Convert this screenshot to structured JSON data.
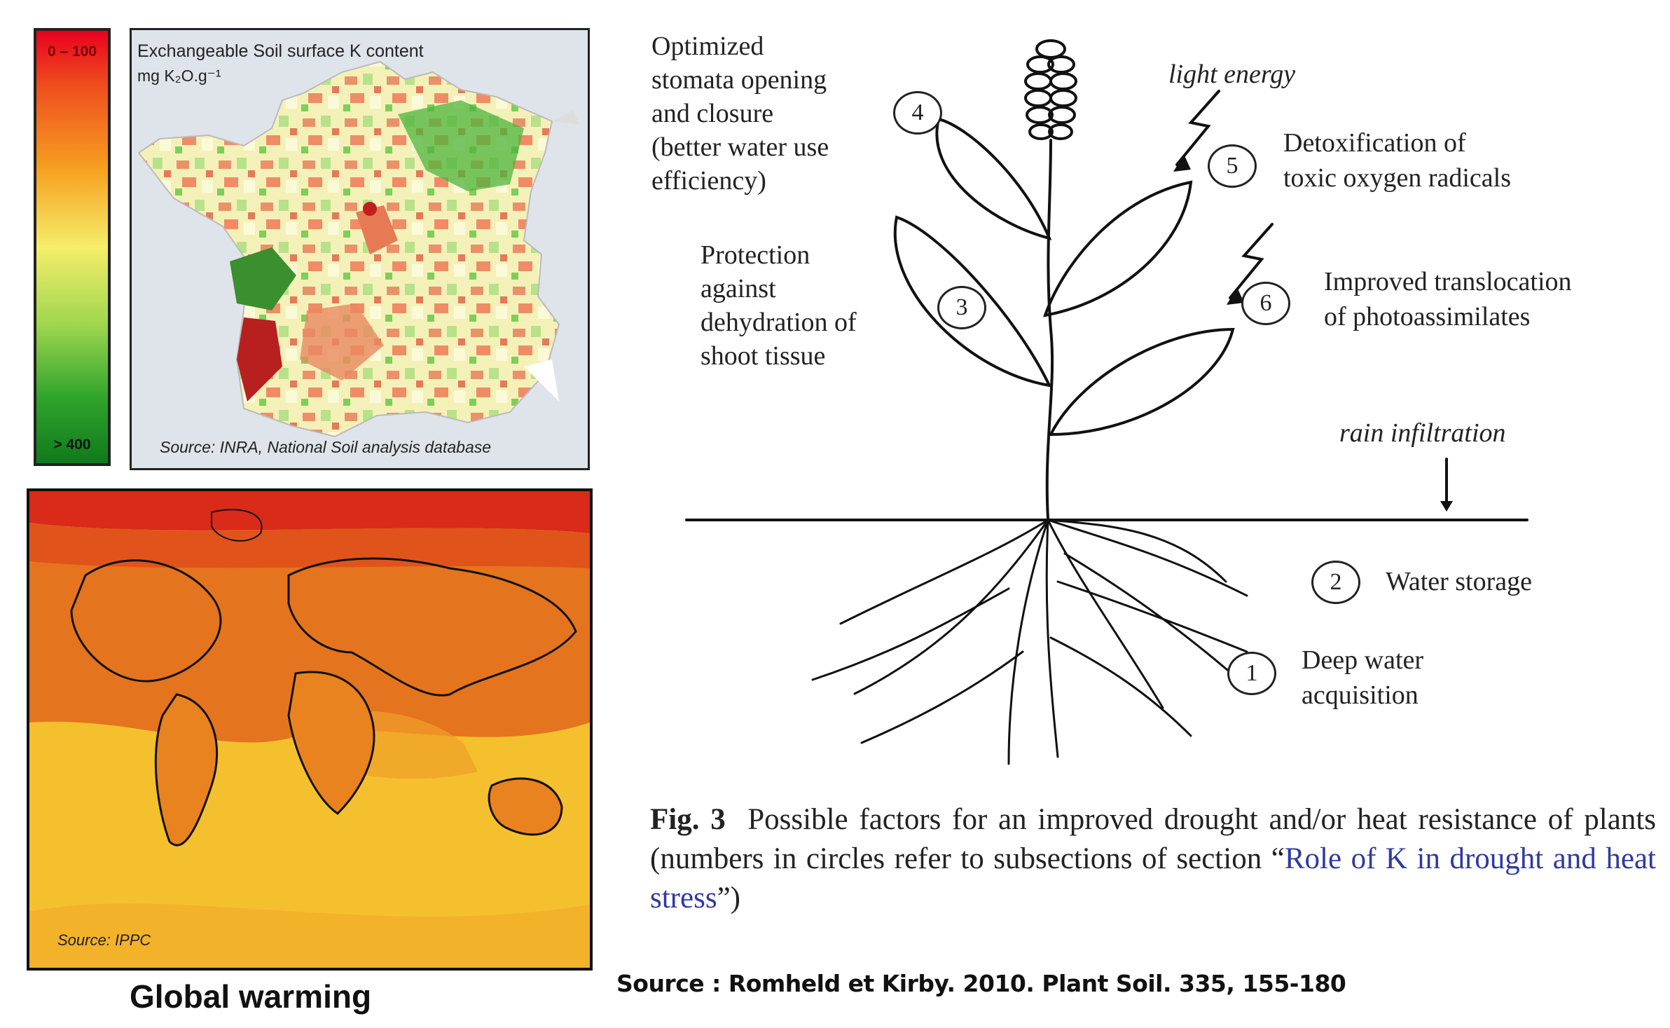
{
  "legend": {
    "top_label": "0 – 100",
    "bottom_label": "> 400"
  },
  "france_map": {
    "title_line1": "Exchangeable Soil surface K content",
    "title_line2": "mg K₂O.g⁻¹",
    "source": "Source: INRA, National Soil analysis database"
  },
  "world_map": {
    "source": "Source: IPPC",
    "caption": "Global warming"
  },
  "plant": {
    "label_4": [
      "Optimized",
      "stomata opening",
      "and closure",
      "(better water use",
      "efficiency)"
    ],
    "label_3": [
      "Protection",
      "against",
      "dehydration of",
      "shoot tissue"
    ],
    "light_energy": "light energy",
    "label_5": [
      "Detoxification of",
      "toxic oxygen radicals"
    ],
    "label_6": [
      "Improved translocation",
      "of photoassimilates"
    ],
    "rain": "rain infiltration",
    "label_2": "Water storage",
    "label_1": [
      "Deep water",
      "acquisition"
    ],
    "numbers": {
      "n1": "1",
      "n2": "2",
      "n3": "3",
      "n4": "4",
      "n5": "5",
      "n6": "6"
    }
  },
  "figure_caption": {
    "fig_label": "Fig. 3",
    "text_a": "Possible factors for an improved drought and/or heat resistance of plants (numbers in circles refer to subsections of section “",
    "link": "Role of K in drought and heat stress",
    "text_b": "”)"
  },
  "source_ref": "Source : Romheld et Kirby. 2010. Plant Soil. 335, 155-180"
}
